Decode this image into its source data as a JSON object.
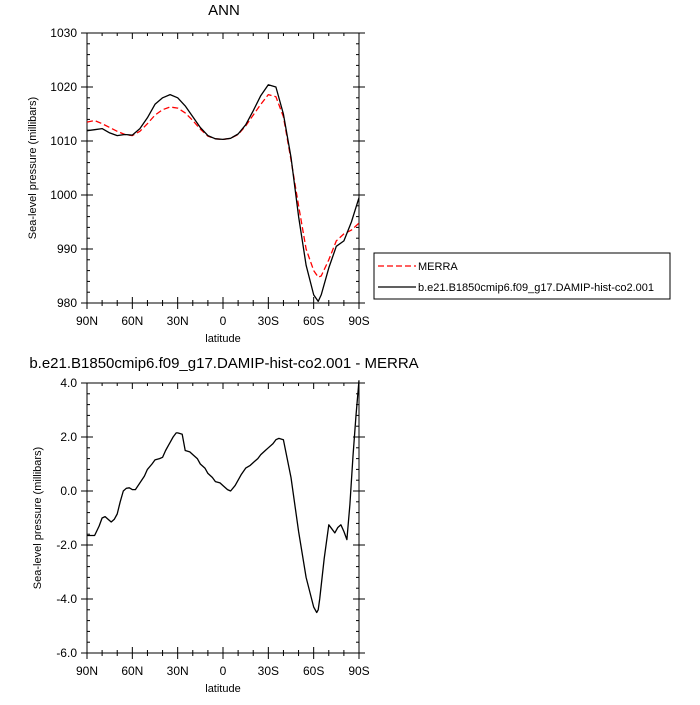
{
  "chart_data": [
    {
      "type": "line",
      "title": "ANN",
      "xlabel": "latitude",
      "ylabel": "Sea-level pressure (millibars)",
      "xlim": [
        90,
        -90
      ],
      "ylim": [
        980,
        1030
      ],
      "x_ticks": [
        "90N",
        "60N",
        "30N",
        "0",
        "30S",
        "60S",
        "90S"
      ],
      "x_tick_values": [
        90,
        60,
        30,
        0,
        -30,
        -60,
        -90
      ],
      "y_ticks": [
        "980",
        "990",
        "1000",
        "1010",
        "1020",
        "1030"
      ],
      "y_tick_values": [
        980,
        990,
        1000,
        1010,
        1020,
        1030
      ],
      "legend_position": "right-bottom",
      "series": [
        {
          "name": "MERRA",
          "color": "#ff0000",
          "dash": "dashed",
          "x": [
            90,
            85,
            80,
            75,
            70,
            65,
            60,
            55,
            50,
            45,
            40,
            35,
            30,
            25,
            20,
            15,
            10,
            5,
            0,
            -5,
            -10,
            -15,
            -20,
            -25,
            -30,
            -35,
            -40,
            -45,
            -50,
            -55,
            -60,
            -63,
            -65,
            -70,
            -75,
            -80,
            -85,
            -90
          ],
          "y": [
            1013.5,
            1013.8,
            1013.2,
            1012.5,
            1011.8,
            1011.2,
            1011.0,
            1011.8,
            1013.2,
            1014.8,
            1015.8,
            1016.3,
            1016.1,
            1015.2,
            1013.8,
            1012.2,
            1010.9,
            1010.4,
            1010.3,
            1010.5,
            1011.2,
            1012.8,
            1014.8,
            1016.8,
            1018.6,
            1018.2,
            1014.5,
            1006.5,
            998.0,
            990.0,
            986.0,
            984.8,
            985.0,
            988.0,
            991.5,
            992.8,
            993.5,
            994.8
          ]
        },
        {
          "name": "b.e21.B1850cmip6.f09_g17.DAMIP-hist-co2.001",
          "color": "#000000",
          "dash": "solid",
          "x": [
            90,
            85,
            80,
            75,
            70,
            65,
            60,
            55,
            50,
            45,
            40,
            35,
            30,
            25,
            20,
            15,
            10,
            5,
            0,
            -5,
            -10,
            -15,
            -20,
            -25,
            -30,
            -35,
            -40,
            -45,
            -50,
            -55,
            -60,
            -63,
            -65,
            -70,
            -75,
            -80,
            -85,
            -90
          ],
          "y": [
            1011.9,
            1012.1,
            1012.3,
            1011.5,
            1011.0,
            1011.2,
            1011.1,
            1012.3,
            1014.3,
            1016.8,
            1018.0,
            1018.6,
            1018.0,
            1016.5,
            1014.5,
            1012.5,
            1011.0,
            1010.4,
            1010.3,
            1010.5,
            1011.3,
            1013.0,
            1015.6,
            1018.4,
            1020.4,
            1020.0,
            1015.0,
            1007.0,
            996.0,
            987.0,
            981.5,
            980.3,
            981.5,
            986.5,
            990.5,
            991.5,
            995.0,
            999.5
          ]
        }
      ]
    },
    {
      "type": "line",
      "title": "b.e21.B1850cmip6.f09_g17.DAMIP-hist-co2.001 - MERRA",
      "xlabel": "latitude",
      "ylabel": "Sea-level pressure (millibars)",
      "xlim": [
        90,
        -90
      ],
      "ylim": [
        -6.0,
        4.0
      ],
      "x_ticks": [
        "90N",
        "60N",
        "30N",
        "0",
        "30S",
        "60S",
        "90S"
      ],
      "x_tick_values": [
        90,
        60,
        30,
        0,
        -30,
        -60,
        -90
      ],
      "y_ticks": [
        "-6.0",
        "-4.0",
        "-2.0",
        "0.0",
        "2.0",
        "4.0"
      ],
      "y_tick_values": [
        -6,
        -4,
        -2,
        0,
        2,
        4
      ],
      "series": [
        {
          "color": "#000000",
          "dash": "solid",
          "x": [
            90,
            87,
            85,
            82,
            80,
            78,
            76,
            74,
            72,
            70,
            68,
            66,
            64,
            62,
            60,
            58,
            55,
            52,
            50,
            47,
            45,
            42,
            40,
            38,
            36,
            35,
            33,
            31,
            30,
            28,
            27,
            26,
            25,
            22,
            20,
            17,
            15,
            12,
            10,
            7,
            5,
            2,
            0,
            -3,
            -5,
            -8,
            -10,
            -12,
            -15,
            -18,
            -20,
            -23,
            -25,
            -28,
            -30,
            -33,
            -35,
            -37,
            -40,
            -45,
            -50,
            -55,
            -60,
            -62,
            -63,
            -64,
            -65,
            -67,
            -70,
            -72,
            -74,
            -76,
            -78,
            -80,
            -82,
            -84,
            -86,
            -88,
            -90
          ],
          "y": [
            -1.65,
            -1.65,
            -1.65,
            -1.3,
            -1.0,
            -0.95,
            -1.05,
            -1.15,
            -1.05,
            -0.85,
            -0.4,
            0.0,
            0.1,
            0.12,
            0.05,
            0.05,
            0.3,
            0.55,
            0.8,
            1.0,
            1.15,
            1.2,
            1.25,
            1.5,
            1.7,
            1.8,
            2.0,
            2.15,
            2.15,
            2.12,
            2.1,
            1.8,
            1.5,
            1.45,
            1.35,
            1.2,
            1.0,
            0.85,
            0.65,
            0.5,
            0.35,
            0.3,
            0.2,
            0.05,
            0.0,
            0.2,
            0.4,
            0.6,
            0.85,
            0.95,
            1.05,
            1.2,
            1.35,
            1.5,
            1.6,
            1.75,
            1.9,
            1.95,
            1.9,
            0.5,
            -1.5,
            -3.2,
            -4.3,
            -4.5,
            -4.4,
            -4.0,
            -3.5,
            -2.5,
            -1.25,
            -1.4,
            -1.55,
            -1.35,
            -1.25,
            -1.5,
            -1.8,
            -0.5,
            1.3,
            2.8,
            4.1
          ]
        }
      ]
    }
  ]
}
